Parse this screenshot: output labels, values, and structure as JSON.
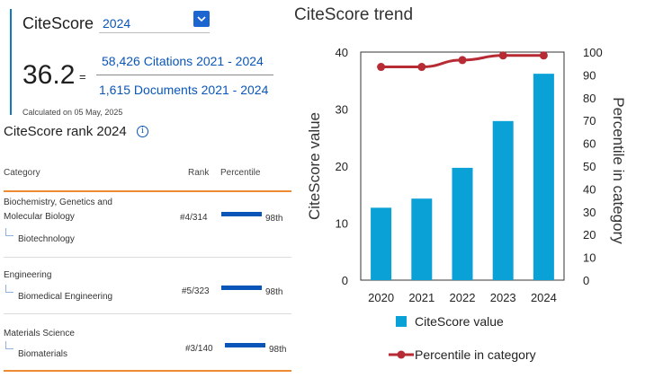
{
  "citescore": {
    "title": "CiteScore",
    "year_selected": "2024",
    "score": "36.2",
    "equals": "=",
    "citations": "58,426 Citations 2021 - 2024",
    "documents": "1,615 Documents 2021 - 2024",
    "calculated": "Calculated on 05 May, 2025"
  },
  "rank": {
    "title": "CiteScore rank 2024",
    "info_icon": "info-icon",
    "headers": {
      "category": "Category",
      "rank": "Rank",
      "percentile": "Percentile"
    },
    "rows": [
      {
        "category": "Biochemistry, Genetics and Molecular Biology",
        "subcategory": "Biotechnology",
        "rank": "#4/314",
        "percentile": "98th",
        "percentile_value": 98
      },
      {
        "category": "Engineering",
        "subcategory": "Biomedical Engineering",
        "rank": "#5/323",
        "percentile": "98th",
        "percentile_value": 98
      },
      {
        "category": "Materials Science",
        "subcategory": "Biomaterials",
        "rank": "#3/140",
        "percentile": "98th",
        "percentile_value": 98
      }
    ]
  },
  "chart_data": {
    "type": "bar",
    "title": "CiteScore trend",
    "categories": [
      "2020",
      "2021",
      "2022",
      "2023",
      "2024"
    ],
    "series": [
      {
        "name": "CiteScore value",
        "type": "bar",
        "axis": "left",
        "values": [
          12.7,
          14.3,
          19.7,
          27.9,
          36.2
        ],
        "color": "#0aa2d6"
      },
      {
        "name": "Percentile in category",
        "type": "line",
        "axis": "right",
        "values": [
          93.5,
          93.5,
          96.5,
          98.5,
          98.5
        ],
        "color": "#b72b34"
      }
    ],
    "ylabel": "CiteScore value",
    "y2label": "Percentile in category",
    "ylim": [
      0,
      40
    ],
    "y2lim": [
      0,
      100
    ],
    "yticks": [
      "0",
      "10",
      "20",
      "30",
      "40"
    ],
    "y2ticks": [
      "0",
      "10",
      "20",
      "30",
      "40",
      "50",
      "60",
      "70",
      "80",
      "90",
      "100"
    ],
    "grid": false,
    "legend_position": "bottom"
  }
}
